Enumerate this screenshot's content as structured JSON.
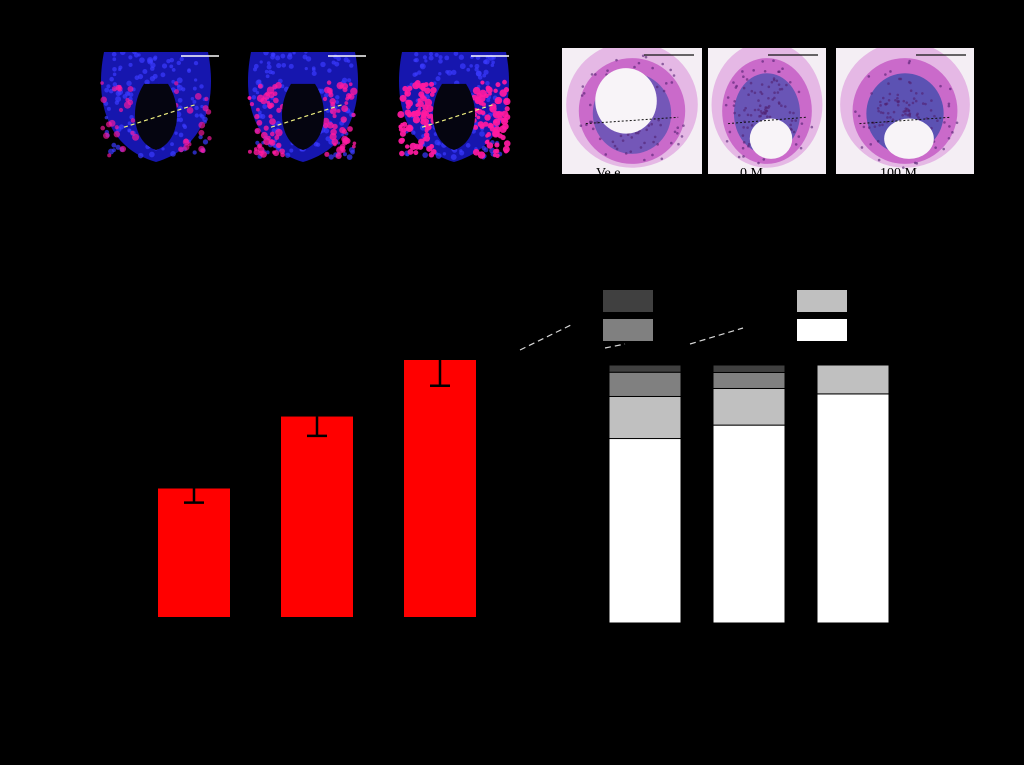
{
  "panels": {
    "fluorescence": {
      "images": [
        {
          "id": "fluor-1",
          "icon": "fluorescence-micrograph",
          "magenta_intensity": 0.25
        },
        {
          "id": "fluor-2",
          "icon": "fluorescence-micrograph",
          "magenta_intensity": 0.6
        },
        {
          "id": "fluor-3",
          "icon": "fluorescence-micrograph",
          "magenta_intensity": 0.95
        }
      ],
      "colors": {
        "nuclei": "#1a1acc",
        "signal": "#ff1aa0",
        "cut_line": "#f0f080"
      }
    },
    "histology": {
      "images": [
        {
          "id": "he-1",
          "icon": "he-stained-section",
          "caption": "Ve  e"
        },
        {
          "id": "he-2",
          "icon": "he-stained-section",
          "caption": "  0 M"
        },
        {
          "id": "he-3",
          "icon": "he-stained-section",
          "caption": "100  M"
        }
      ],
      "colors": {
        "stain": "#c050c0",
        "hematoxylin": "#5050b0",
        "background": "#f4eef4"
      }
    }
  },
  "chart_data": [
    {
      "type": "bar",
      "categories": [
        "",
        "",
        ""
      ],
      "values": [
        50,
        78,
        100
      ],
      "errors": [
        5.5,
        7.5,
        10
      ],
      "ylim": [
        0,
        100
      ],
      "color": "#ff0000",
      "errorbar_color": "#000000",
      "title": "",
      "xlabel": "",
      "ylabel": ""
    },
    {
      "type": "bar",
      "stacked": true,
      "categories": [
        "",
        "",
        ""
      ],
      "ylim": [
        0,
        100
      ],
      "series": [
        {
          "color": "#ffffff",
          "values": [
            71.5,
            76.7,
            88.8
          ]
        },
        {
          "color": "#c0c0c0",
          "values": [
            16.3,
            14.2,
            11.2
          ]
        },
        {
          "color": "#808080",
          "values": [
            9.4,
            6.2,
            0
          ]
        },
        {
          "color": "#404040",
          "values": [
            2.8,
            2.9,
            0
          ]
        }
      ],
      "legend": {
        "placement": "top",
        "swatches": [
          "#404040",
          "#808080",
          "#c0c0c0",
          "#ffffff"
        ]
      }
    }
  ]
}
